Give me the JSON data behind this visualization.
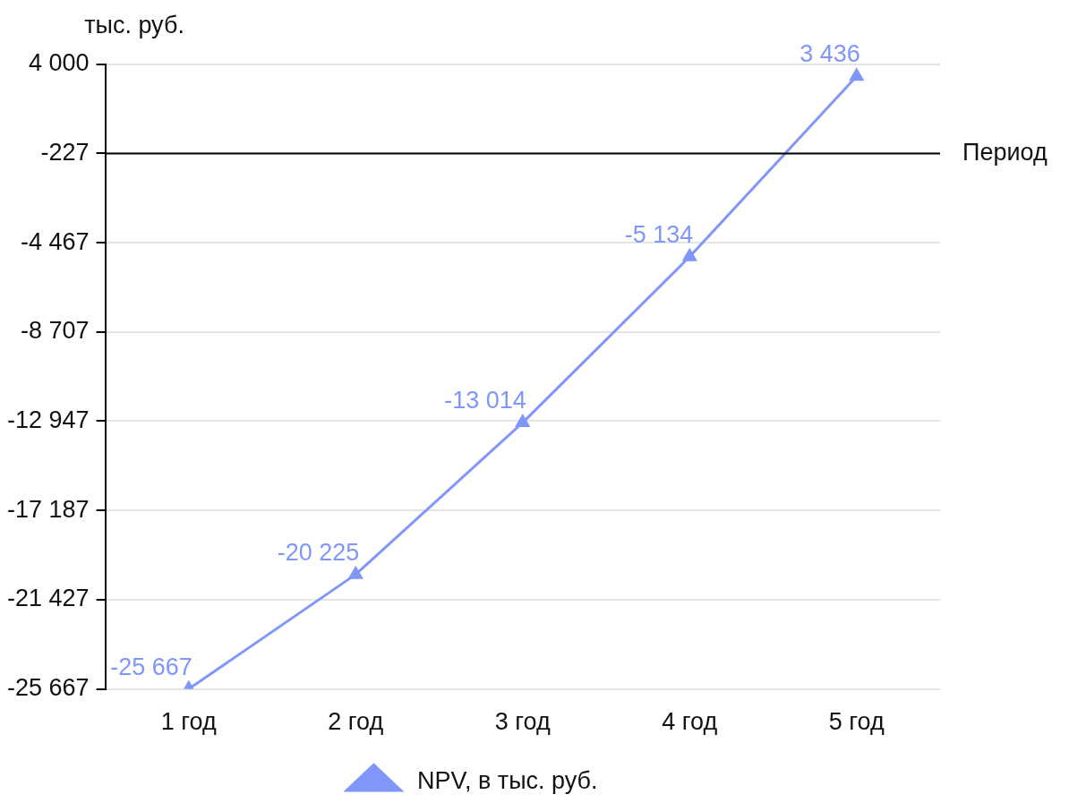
{
  "chart_data": {
    "type": "line",
    "ylabel": "тыс. руб.",
    "xlabel": "Период",
    "categories": [
      "1 год",
      "2 год",
      "3 год",
      "4 год",
      "5 год"
    ],
    "series": [
      {
        "name": "NPV, в тыс. руб.",
        "color": "#8096fa",
        "values": [
          -25667,
          -20225,
          -13014,
          -5134,
          3436
        ]
      }
    ],
    "ylim": [
      -25667,
      4000
    ],
    "yticks": [
      {
        "value": 4000,
        "label": "4 000"
      },
      {
        "value": -227,
        "label": "-227"
      },
      {
        "value": -4467,
        "label": "-4 467"
      },
      {
        "value": -8707,
        "label": "-8 707"
      },
      {
        "value": -12947,
        "label": "-12 947"
      },
      {
        "value": -17187,
        "label": "-17 187"
      },
      {
        "value": -21427,
        "label": "-21 427"
      },
      {
        "value": -25667,
        "label": "-25 667"
      }
    ],
    "ref_lines": [
      {
        "axis": "y",
        "value": -227,
        "color": "#000000"
      }
    ],
    "grid": "y",
    "legend": "bottom",
    "marker": "triangle",
    "line_style": "solid",
    "data_labels": true
  }
}
